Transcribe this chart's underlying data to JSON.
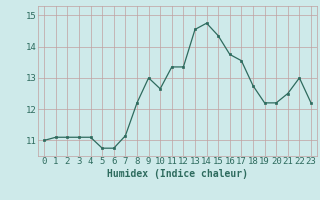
{
  "x": [
    0,
    1,
    2,
    3,
    4,
    5,
    6,
    7,
    8,
    9,
    10,
    11,
    12,
    13,
    14,
    15,
    16,
    17,
    18,
    19,
    20,
    21,
    22,
    23
  ],
  "y": [
    11.0,
    11.1,
    11.1,
    11.1,
    11.1,
    10.75,
    10.75,
    11.15,
    12.2,
    13.0,
    12.65,
    13.35,
    13.35,
    14.55,
    14.75,
    14.35,
    13.75,
    13.55,
    12.75,
    12.2,
    12.2,
    12.5,
    13.0,
    12.2
  ],
  "line_color": "#2e6b5e",
  "marker": "s",
  "marker_size": 2.0,
  "line_width": 0.9,
  "xlabel": "Humidex (Indice chaleur)",
  "ylim": [
    10.5,
    15.3
  ],
  "xlim": [
    -0.5,
    23.5
  ],
  "yticks": [
    11,
    12,
    13,
    14,
    15
  ],
  "xticks": [
    0,
    1,
    2,
    3,
    4,
    5,
    6,
    7,
    8,
    9,
    10,
    11,
    12,
    13,
    14,
    15,
    16,
    17,
    18,
    19,
    20,
    21,
    22,
    23
  ],
  "bg_color": "#ceeaea",
  "grid_color": "#c0a0a0",
  "font_color": "#2e6b5e",
  "xlabel_fontsize": 7,
  "tick_fontsize": 6.5
}
